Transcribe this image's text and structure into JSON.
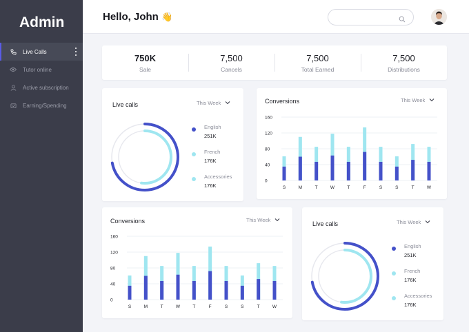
{
  "sidebar": {
    "brand": "Admin",
    "items": [
      {
        "label": "Live Calls",
        "icon": "phone-icon",
        "active": true
      },
      {
        "label": "Tutor online",
        "icon": "eye-icon",
        "active": false
      },
      {
        "label": "Active subscription",
        "icon": "user-icon",
        "active": false
      },
      {
        "label": "Earning/Spending",
        "icon": "wallet-icon",
        "active": false
      }
    ]
  },
  "header": {
    "greeting": "Hello, John",
    "wave": "👋",
    "search_placeholder": ""
  },
  "stats": [
    {
      "value": "750K",
      "label": "Sale"
    },
    {
      "value": "7,500",
      "label": "Cancels"
    },
    {
      "value": "7,500",
      "label": "Total Earned"
    },
    {
      "value": "7,500",
      "label": "Distributions"
    }
  ],
  "live_calls_1": {
    "title": "Live calls",
    "period": "This Week",
    "legend": [
      {
        "name": "English",
        "value": "251K"
      },
      {
        "name": "French",
        "value": "176K"
      },
      {
        "name": "Accessories",
        "value": "176K"
      }
    ]
  },
  "live_calls_2": {
    "title": "Live calls",
    "period": "This Week",
    "legend": [
      {
        "name": "English",
        "value": "251K"
      },
      {
        "name": "French",
        "value": "176K"
      },
      {
        "name": "Accessories",
        "value": "176K"
      }
    ]
  },
  "conversions_1": {
    "title": "Conversions",
    "period": "This Week"
  },
  "conversions_2": {
    "title": "Conversions",
    "period": "This Week"
  },
  "colors": {
    "sidebar": "#3b3d4a",
    "accent_dark": "#4451c9",
    "accent_light": "#9fe6f0",
    "ring_track": "#e7e8ee"
  },
  "chart_data": [
    {
      "type": "bar",
      "title": "Conversions",
      "categories": [
        "S",
        "M",
        "T",
        "W",
        "T",
        "F",
        "S",
        "S",
        "T",
        "W"
      ],
      "ylim": [
        0,
        160
      ],
      "yticks": [
        0,
        40,
        80,
        120,
        160
      ],
      "grid": true,
      "stacked": true,
      "series": [
        {
          "values": [
            35,
            60,
            47,
            63,
            47,
            72,
            47,
            35,
            52,
            47
          ]
        },
        {
          "values": [
            26,
            50,
            38,
            55,
            38,
            62,
            38,
            26,
            40,
            38
          ]
        }
      ]
    },
    {
      "type": "bar",
      "title": "Conversions",
      "categories": [
        "S",
        "M",
        "T",
        "W",
        "T",
        "F",
        "S",
        "S",
        "T",
        "W"
      ],
      "ylim": [
        0,
        160
      ],
      "yticks": [
        0,
        40,
        80,
        120,
        160
      ],
      "grid": true,
      "stacked": true,
      "series": [
        {
          "values": [
            35,
            60,
            47,
            63,
            47,
            72,
            47,
            35,
            52,
            47
          ]
        },
        {
          "values": [
            26,
            50,
            38,
            55,
            38,
            62,
            38,
            26,
            40,
            38
          ]
        }
      ]
    },
    {
      "type": "pie",
      "title": "Live calls",
      "categories": [
        "English",
        "French"
      ],
      "values": [
        0.72,
        0.52
      ]
    },
    {
      "type": "pie",
      "title": "Live calls",
      "categories": [
        "English",
        "French"
      ],
      "values": [
        0.72,
        0.52
      ]
    }
  ]
}
